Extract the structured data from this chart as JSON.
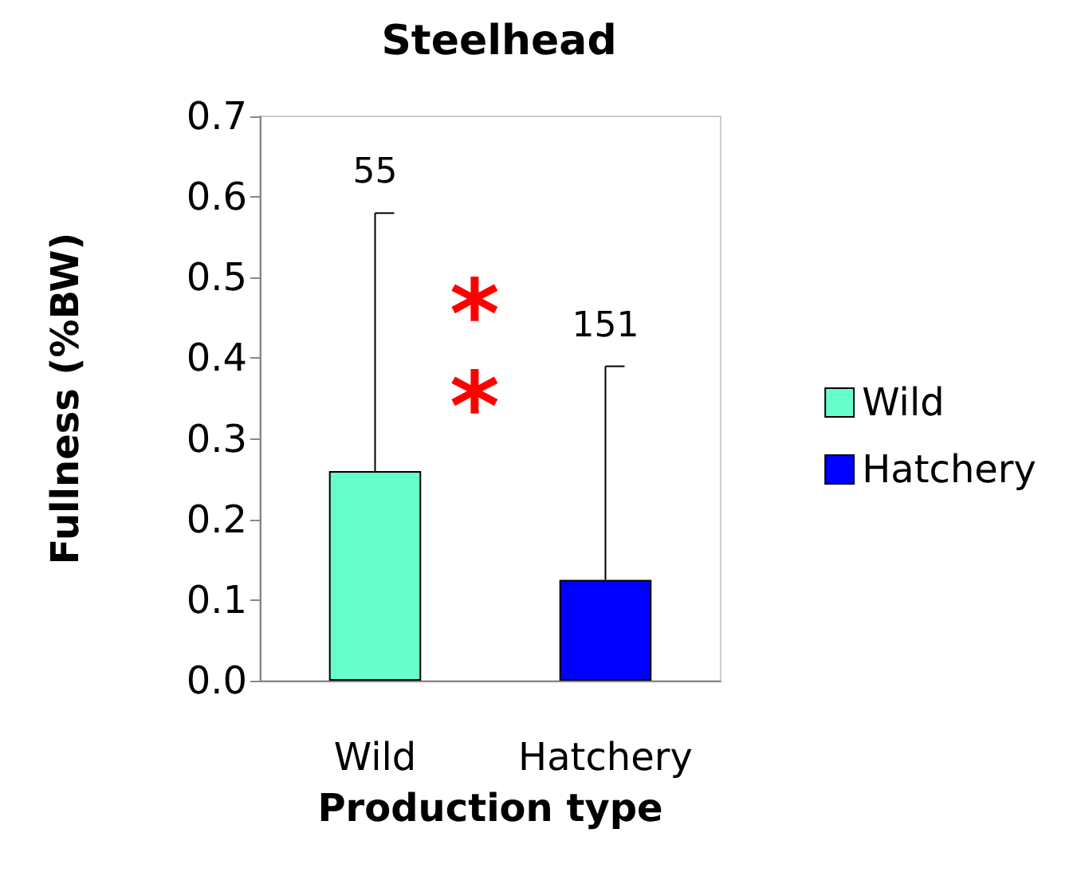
{
  "chart_data": {
    "type": "bar",
    "title": "Steelhead",
    "xlabel": "Production type",
    "ylabel": "Fullness (%BW)",
    "categories": [
      "Wild",
      "Hatchery"
    ],
    "series": [
      {
        "name": "Wild",
        "color": "#66ffcc",
        "values": [
          0.26,
          null
        ],
        "errors": [
          [
            0.26,
            0.58
          ],
          null
        ]
      },
      {
        "name": "Hatchery",
        "color": "#0000ff",
        "values": [
          null,
          0.125
        ],
        "errors": [
          null,
          [
            0.125,
            0.39
          ]
        ]
      }
    ],
    "stacked": true,
    "ylim": [
      0,
      0.7
    ],
    "yticks": [
      "0.0",
      0.1,
      0.2,
      0.3,
      0.4,
      0.5,
      0.6,
      0.7
    ],
    "annotations": [
      {
        "text": "55",
        "x": "Wild",
        "y": 0.58
      },
      {
        "text": "151",
        "x": "Hatchery",
        "y": 0.39
      },
      "**"
    ],
    "legend": "right",
    "grid": false
  }
}
